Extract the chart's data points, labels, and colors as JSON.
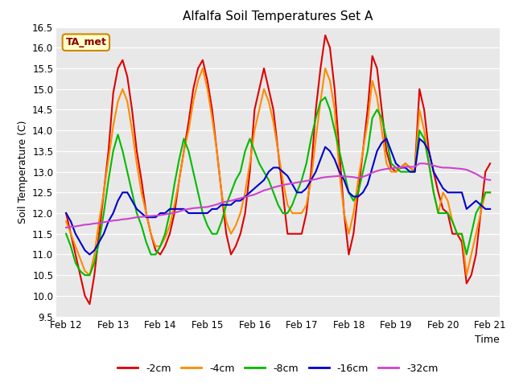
{
  "title": "Alfalfa Soil Temperatures Set A",
  "xlabel": "Time",
  "ylabel": "Soil Temperature (C)",
  "annotation": "TA_met",
  "ylim": [
    9.5,
    16.5
  ],
  "fig_facecolor": "#f0f0f0",
  "plot_facecolor": "#e0e0e0",
  "series": {
    "-2cm": {
      "color": "#dd0000",
      "times": [
        0.0,
        0.1,
        0.2,
        0.3,
        0.4,
        0.5,
        0.6,
        0.7,
        0.8,
        0.9,
        1.0,
        1.1,
        1.2,
        1.3,
        1.4,
        1.5,
        1.6,
        1.7,
        1.8,
        1.9,
        2.0,
        2.1,
        2.2,
        2.3,
        2.4,
        2.5,
        2.6,
        2.7,
        2.8,
        2.9,
        3.0,
        3.1,
        3.2,
        3.3,
        3.4,
        3.5,
        3.6,
        3.7,
        3.8,
        3.9,
        4.0,
        4.1,
        4.2,
        4.3,
        4.4,
        4.5,
        4.6,
        4.7,
        4.8,
        4.9,
        5.0,
        5.1,
        5.2,
        5.3,
        5.4,
        5.5,
        5.6,
        5.7,
        5.8,
        5.9,
        6.0,
        6.1,
        6.2,
        6.3,
        6.4,
        6.5,
        6.6,
        6.7,
        6.8,
        6.9,
        7.0,
        7.1,
        7.2,
        7.3,
        7.4,
        7.5,
        7.6,
        7.7,
        7.8,
        7.9,
        8.0,
        8.1,
        8.2,
        8.3,
        8.4,
        8.5,
        8.6,
        8.7,
        8.8,
        8.9,
        9.0
      ],
      "values": [
        12.0,
        11.5,
        11.0,
        10.5,
        10.0,
        9.8,
        10.5,
        11.5,
        12.5,
        13.5,
        14.9,
        15.5,
        15.7,
        15.3,
        14.5,
        13.5,
        12.8,
        12.0,
        11.5,
        11.1,
        11.0,
        11.2,
        11.5,
        12.0,
        12.8,
        13.5,
        14.2,
        15.0,
        15.5,
        15.7,
        15.2,
        14.5,
        13.5,
        12.5,
        11.5,
        11.0,
        11.2,
        11.5,
        12.0,
        13.0,
        14.5,
        15.0,
        15.5,
        15.0,
        14.5,
        13.5,
        12.5,
        11.5,
        11.5,
        11.5,
        11.5,
        12.0,
        13.0,
        14.5,
        15.5,
        16.3,
        16.0,
        15.0,
        13.5,
        12.0,
        11.0,
        11.5,
        12.5,
        13.5,
        14.5,
        15.8,
        15.5,
        14.5,
        13.5,
        13.1,
        13.0,
        13.1,
        13.2,
        13.1,
        13.0,
        15.0,
        14.5,
        13.5,
        13.0,
        12.5,
        12.1,
        12.0,
        11.5,
        11.5,
        11.3,
        10.3,
        10.5,
        11.0,
        12.0,
        13.0,
        13.2
      ]
    },
    "-4cm": {
      "color": "#ff8c00",
      "times": [
        0.0,
        0.1,
        0.2,
        0.3,
        0.4,
        0.5,
        0.6,
        0.7,
        0.8,
        0.9,
        1.0,
        1.1,
        1.2,
        1.3,
        1.4,
        1.5,
        1.6,
        1.7,
        1.8,
        1.9,
        2.0,
        2.1,
        2.2,
        2.3,
        2.4,
        2.5,
        2.6,
        2.7,
        2.8,
        2.9,
        3.0,
        3.1,
        3.2,
        3.3,
        3.4,
        3.5,
        3.6,
        3.7,
        3.8,
        3.9,
        4.0,
        4.1,
        4.2,
        4.3,
        4.4,
        4.5,
        4.6,
        4.7,
        4.8,
        4.9,
        5.0,
        5.1,
        5.2,
        5.3,
        5.4,
        5.5,
        5.6,
        5.7,
        5.8,
        5.9,
        6.0,
        6.1,
        6.2,
        6.3,
        6.4,
        6.5,
        6.6,
        6.7,
        6.8,
        6.9,
        7.0,
        7.1,
        7.2,
        7.3,
        7.4,
        7.5,
        7.6,
        7.7,
        7.8,
        7.9,
        8.0,
        8.1,
        8.2,
        8.3,
        8.4,
        8.5,
        8.6,
        8.7,
        8.8,
        8.9,
        9.0
      ],
      "values": [
        11.8,
        11.5,
        11.2,
        10.9,
        10.6,
        10.5,
        11.0,
        11.8,
        12.5,
        13.3,
        14.1,
        14.7,
        15.0,
        14.7,
        14.0,
        13.2,
        12.5,
        12.0,
        11.5,
        11.2,
        11.2,
        11.4,
        11.7,
        12.2,
        12.8,
        13.5,
        14.0,
        14.7,
        15.2,
        15.5,
        15.0,
        14.3,
        13.5,
        12.5,
        11.8,
        11.5,
        11.7,
        12.0,
        12.5,
        13.2,
        14.0,
        14.5,
        15.0,
        14.7,
        14.2,
        13.5,
        12.8,
        12.2,
        12.0,
        12.0,
        12.0,
        12.2,
        12.8,
        13.8,
        14.7,
        15.5,
        15.2,
        14.5,
        13.0,
        12.0,
        11.5,
        12.0,
        12.8,
        13.5,
        14.2,
        15.2,
        14.8,
        14.0,
        13.2,
        13.0,
        13.0,
        13.1,
        13.2,
        13.1,
        13.0,
        14.5,
        14.0,
        13.2,
        12.5,
        12.0,
        12.5,
        12.3,
        11.8,
        11.5,
        11.5,
        10.5,
        11.0,
        11.5,
        12.0,
        12.5,
        12.5
      ]
    },
    "-8cm": {
      "color": "#00bb00",
      "times": [
        0.0,
        0.1,
        0.2,
        0.3,
        0.4,
        0.5,
        0.6,
        0.7,
        0.8,
        0.9,
        1.0,
        1.1,
        1.2,
        1.3,
        1.4,
        1.5,
        1.6,
        1.7,
        1.8,
        1.9,
        2.0,
        2.1,
        2.2,
        2.3,
        2.4,
        2.5,
        2.6,
        2.7,
        2.8,
        2.9,
        3.0,
        3.1,
        3.2,
        3.3,
        3.4,
        3.5,
        3.6,
        3.7,
        3.8,
        3.9,
        4.0,
        4.1,
        4.2,
        4.3,
        4.4,
        4.5,
        4.6,
        4.7,
        4.8,
        4.9,
        5.0,
        5.1,
        5.2,
        5.3,
        5.4,
        5.5,
        5.6,
        5.7,
        5.8,
        5.9,
        6.0,
        6.1,
        6.2,
        6.3,
        6.4,
        6.5,
        6.6,
        6.7,
        6.8,
        6.9,
        7.0,
        7.1,
        7.2,
        7.3,
        7.4,
        7.5,
        7.6,
        7.7,
        7.8,
        7.9,
        8.0,
        8.1,
        8.2,
        8.3,
        8.4,
        8.5,
        8.6,
        8.7,
        8.8,
        8.9,
        9.0
      ],
      "values": [
        11.5,
        11.2,
        10.8,
        10.6,
        10.5,
        10.5,
        10.8,
        11.3,
        12.0,
        12.8,
        13.5,
        13.9,
        13.5,
        13.0,
        12.5,
        12.0,
        11.7,
        11.3,
        11.0,
        11.0,
        11.2,
        11.5,
        12.0,
        12.7,
        13.3,
        13.8,
        13.5,
        13.0,
        12.5,
        12.0,
        11.7,
        11.5,
        11.5,
        11.8,
        12.2,
        12.5,
        12.8,
        13.0,
        13.5,
        13.8,
        13.5,
        13.2,
        13.0,
        12.8,
        12.5,
        12.2,
        12.0,
        12.0,
        12.2,
        12.5,
        12.8,
        13.2,
        13.8,
        14.3,
        14.7,
        14.8,
        14.5,
        14.0,
        13.5,
        13.0,
        12.5,
        12.3,
        12.5,
        13.0,
        13.5,
        14.3,
        14.5,
        14.3,
        13.8,
        13.2,
        13.1,
        13.0,
        13.0,
        13.0,
        13.0,
        14.0,
        13.8,
        13.2,
        12.5,
        12.0,
        12.0,
        12.0,
        11.8,
        11.5,
        11.5,
        11.0,
        11.5,
        12.0,
        12.2,
        12.5,
        12.5
      ]
    },
    "-16cm": {
      "color": "#0000cc",
      "times": [
        0.0,
        0.1,
        0.2,
        0.3,
        0.4,
        0.5,
        0.6,
        0.7,
        0.8,
        0.9,
        1.0,
        1.1,
        1.2,
        1.3,
        1.4,
        1.5,
        1.6,
        1.7,
        1.8,
        1.9,
        2.0,
        2.1,
        2.2,
        2.3,
        2.4,
        2.5,
        2.6,
        2.7,
        2.8,
        2.9,
        3.0,
        3.1,
        3.2,
        3.3,
        3.4,
        3.5,
        3.6,
        3.7,
        3.8,
        3.9,
        4.0,
        4.1,
        4.2,
        4.3,
        4.4,
        4.5,
        4.6,
        4.7,
        4.8,
        4.9,
        5.0,
        5.1,
        5.2,
        5.3,
        5.4,
        5.5,
        5.6,
        5.7,
        5.8,
        5.9,
        6.0,
        6.1,
        6.2,
        6.3,
        6.4,
        6.5,
        6.6,
        6.7,
        6.8,
        6.9,
        7.0,
        7.1,
        7.2,
        7.3,
        7.4,
        7.5,
        7.6,
        7.7,
        7.8,
        7.9,
        8.0,
        8.1,
        8.2,
        8.3,
        8.4,
        8.5,
        8.6,
        8.7,
        8.8,
        8.9,
        9.0
      ],
      "values": [
        12.0,
        11.8,
        11.5,
        11.3,
        11.1,
        11.0,
        11.1,
        11.3,
        11.5,
        11.8,
        12.0,
        12.3,
        12.5,
        12.5,
        12.3,
        12.1,
        12.0,
        11.9,
        11.9,
        11.9,
        12.0,
        12.0,
        12.1,
        12.1,
        12.1,
        12.1,
        12.0,
        12.0,
        12.0,
        12.0,
        12.0,
        12.1,
        12.1,
        12.2,
        12.2,
        12.2,
        12.3,
        12.3,
        12.4,
        12.5,
        12.6,
        12.7,
        12.8,
        13.0,
        13.1,
        13.1,
        13.0,
        12.9,
        12.7,
        12.5,
        12.5,
        12.6,
        12.8,
        13.0,
        13.3,
        13.6,
        13.5,
        13.3,
        13.0,
        12.8,
        12.5,
        12.4,
        12.4,
        12.5,
        12.7,
        13.1,
        13.5,
        13.7,
        13.8,
        13.5,
        13.2,
        13.1,
        13.1,
        13.0,
        13.0,
        13.8,
        13.7,
        13.5,
        13.0,
        12.8,
        12.6,
        12.5,
        12.5,
        12.5,
        12.5,
        12.1,
        12.2,
        12.3,
        12.2,
        12.1,
        12.1
      ]
    },
    "-32cm": {
      "color": "#cc44cc",
      "times": [
        0.0,
        0.1,
        0.2,
        0.3,
        0.4,
        0.5,
        0.6,
        0.7,
        0.8,
        0.9,
        1.0,
        1.1,
        1.2,
        1.3,
        1.4,
        1.5,
        1.6,
        1.7,
        1.8,
        1.9,
        2.0,
        2.1,
        2.2,
        2.3,
        2.4,
        2.5,
        2.6,
        2.7,
        2.8,
        2.9,
        3.0,
        3.1,
        3.2,
        3.3,
        3.4,
        3.5,
        3.6,
        3.7,
        3.8,
        3.9,
        4.0,
        4.1,
        4.2,
        4.3,
        4.4,
        4.5,
        4.6,
        4.7,
        4.8,
        4.9,
        5.0,
        5.1,
        5.2,
        5.3,
        5.4,
        5.5,
        5.6,
        5.7,
        5.8,
        5.9,
        6.0,
        6.1,
        6.2,
        6.3,
        6.4,
        6.5,
        6.6,
        6.7,
        6.8,
        6.9,
        7.0,
        7.1,
        7.2,
        7.3,
        7.4,
        7.5,
        7.6,
        7.7,
        7.8,
        7.9,
        8.0,
        8.1,
        8.2,
        8.3,
        8.4,
        8.5,
        8.6,
        8.7,
        8.8,
        8.9,
        9.0
      ],
      "values": [
        11.65,
        11.67,
        11.68,
        11.7,
        11.72,
        11.73,
        11.75,
        11.76,
        11.78,
        11.8,
        11.82,
        11.83,
        11.85,
        11.86,
        11.88,
        11.9,
        11.91,
        11.92,
        11.93,
        11.94,
        11.95,
        11.97,
        11.99,
        12.01,
        12.04,
        12.08,
        12.1,
        12.12,
        12.13,
        12.14,
        12.15,
        12.18,
        12.21,
        12.25,
        12.28,
        12.3,
        12.33,
        12.36,
        12.39,
        12.42,
        12.45,
        12.5,
        12.55,
        12.58,
        12.62,
        12.65,
        12.68,
        12.7,
        12.72,
        12.74,
        12.76,
        12.78,
        12.8,
        12.82,
        12.85,
        12.87,
        12.88,
        12.89,
        12.9,
        12.89,
        12.88,
        12.87,
        12.85,
        12.88,
        12.92,
        12.98,
        13.02,
        13.05,
        13.07,
        13.08,
        13.1,
        13.11,
        13.12,
        13.12,
        13.12,
        13.2,
        13.2,
        13.18,
        13.15,
        13.12,
        13.1,
        13.1,
        13.09,
        13.08,
        13.07,
        13.05,
        13.0,
        12.95,
        12.88,
        12.82,
        12.8
      ]
    }
  },
  "xtick_positions": [
    0,
    1,
    2,
    3,
    4,
    5,
    6,
    7,
    8,
    9
  ],
  "xtick_labels": [
    "Feb 12",
    "Feb 13",
    "Feb 14",
    "Feb 15",
    "Feb 16",
    "Feb 17",
    "Feb 18",
    "Feb 19",
    "Feb 20",
    "Feb 21"
  ],
  "ytick_positions": [
    9.5,
    10.0,
    10.5,
    11.0,
    11.5,
    12.0,
    12.5,
    13.0,
    13.5,
    14.0,
    14.5,
    15.0,
    15.5,
    16.0,
    16.5
  ],
  "legend_entries": [
    "-2cm",
    "-4cm",
    "-8cm",
    "-16cm",
    "-32cm"
  ],
  "legend_colors": [
    "#dd0000",
    "#ff8c00",
    "#00bb00",
    "#0000cc",
    "#cc44cc"
  ]
}
